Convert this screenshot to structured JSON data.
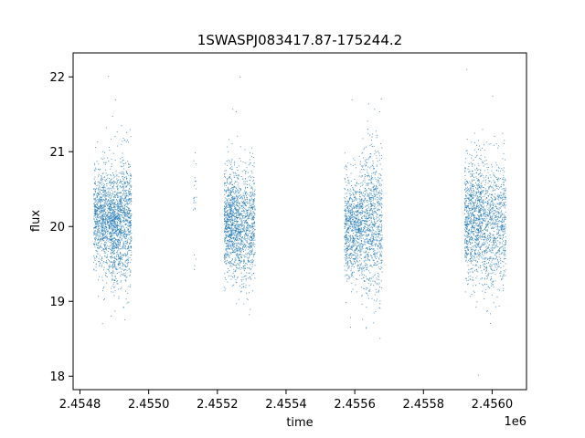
{
  "chart_data": {
    "type": "scatter",
    "title": "1SWASPJ083417.87-175244.2",
    "xlabel": "time",
    "ylabel": "flux",
    "x_offset_label": "1e6",
    "xlim": [
      2.45478,
      2.4561
    ],
    "ylim": [
      17.82,
      22.32
    ],
    "x_ticks": [
      2.4548,
      2.455,
      2.4552,
      2.4554,
      2.4556,
      2.4558,
      2.456
    ],
    "x_tick_labels": [
      "2.4548",
      "2.4550",
      "2.4552",
      "2.4554",
      "2.4556",
      "2.4558",
      "2.4560"
    ],
    "y_ticks": [
      18,
      19,
      20,
      21,
      22
    ],
    "y_tick_labels": [
      "18",
      "19",
      "20",
      "21",
      "22"
    ],
    "grid": false,
    "legend": "none",
    "marker_color": "#1f77b4",
    "series": [
      {
        "clusters": [
          {
            "x_range": [
              2.45484,
              2.45489
            ],
            "y_center": 20.1,
            "y_spread": 0.32,
            "density": 1.0
          },
          {
            "x_range": [
              2.45489,
              2.45492
            ],
            "y_center": 20.0,
            "y_spread": 0.36,
            "density": 0.8
          },
          {
            "x_range": [
              2.45492,
              2.45495
            ],
            "y_center": 20.1,
            "y_spread": 0.42,
            "density": 0.6
          },
          {
            "x_range": [
              2.45513,
              2.45514
            ],
            "y_center": 20.3,
            "y_spread": 0.45,
            "density": 0.02
          },
          {
            "x_range": [
              2.45522,
              2.45526
            ],
            "y_center": 20.05,
            "y_spread": 0.35,
            "density": 0.95
          },
          {
            "x_range": [
              2.45526,
              2.45531
            ],
            "y_center": 20.0,
            "y_spread": 0.38,
            "density": 0.85
          },
          {
            "x_range": [
              2.45557,
              2.45562
            ],
            "y_center": 20.0,
            "y_spread": 0.33,
            "density": 0.9
          },
          {
            "x_range": [
              2.45562,
              2.45568
            ],
            "y_center": 20.05,
            "y_spread": 0.5,
            "density": 1.0
          },
          {
            "x_range": [
              2.45592,
              2.45597
            ],
            "y_center": 20.1,
            "y_spread": 0.38,
            "density": 1.0
          },
          {
            "x_range": [
              2.45597,
              2.45604
            ],
            "y_center": 20.05,
            "y_spread": 0.42,
            "density": 1.0
          }
        ]
      }
    ]
  }
}
